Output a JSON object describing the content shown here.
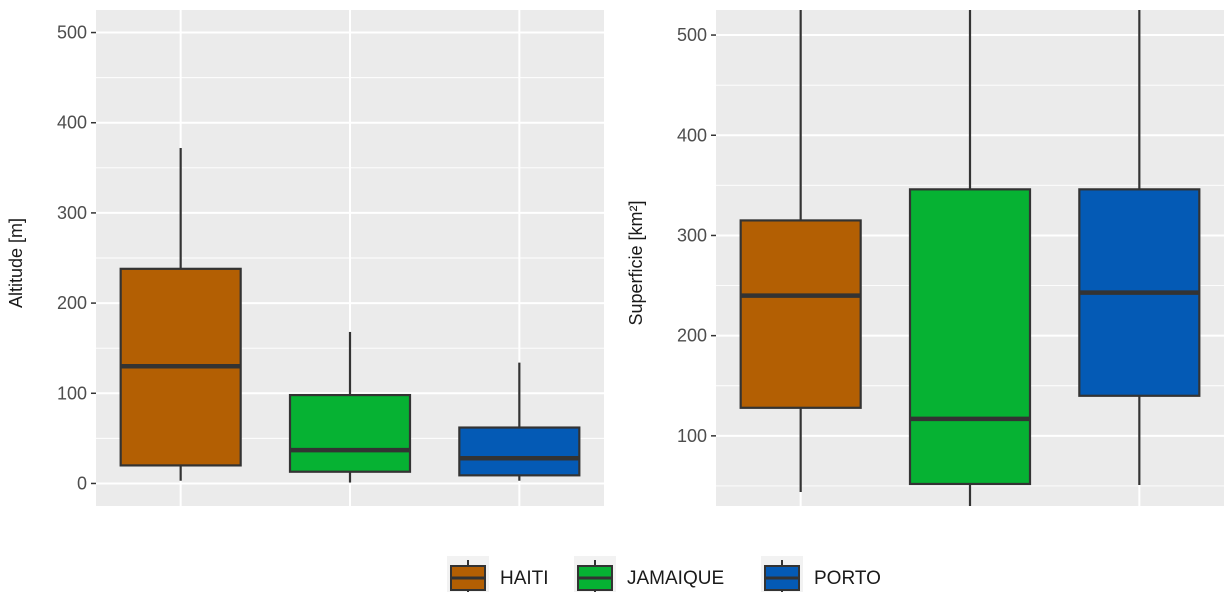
{
  "chart_data": [
    {
      "type": "boxplot",
      "ylabel": "Altitude [m]",
      "ylim": [
        -25,
        525
      ],
      "yticks": [
        0,
        100,
        200,
        300,
        400,
        500
      ],
      "grid": true,
      "series": [
        {
          "name": "HAITI",
          "whisker_low": 3,
          "q1": 20,
          "median": 130,
          "q3": 238,
          "whisker_high": 372
        },
        {
          "name": "JAMAIQUE",
          "whisker_low": 1,
          "q1": 13,
          "median": 37,
          "q3": 98,
          "whisker_high": 168
        },
        {
          "name": "PORTO",
          "whisker_low": 3,
          "q1": 9,
          "median": 28,
          "q3": 62,
          "whisker_high": 134
        }
      ]
    },
    {
      "type": "boxplot",
      "ylabel": "Superficie [km²]",
      "ylim": [
        30,
        525
      ],
      "yticks": [
        100,
        200,
        300,
        400,
        500
      ],
      "grid": true,
      "series": [
        {
          "name": "HAITI",
          "whisker_low": 44,
          "q1": 128,
          "median": 240,
          "q3": 315,
          "whisker_high": 525
        },
        {
          "name": "JAMAIQUE",
          "whisker_low": 27,
          "q1": 52,
          "median": 117,
          "q3": 346,
          "whisker_high": 525
        },
        {
          "name": "PORTO",
          "whisker_low": 51,
          "q1": 140,
          "median": 243,
          "q3": 346,
          "whisker_high": 525
        }
      ]
    }
  ],
  "legend": {
    "position": "bottom",
    "items": [
      {
        "label": "HAITI",
        "color": "#b35f03"
      },
      {
        "label": "JAMAIQUE",
        "color": "#06b233"
      },
      {
        "label": "PORTO",
        "color": "#045ab5"
      }
    ]
  },
  "colors": {
    "panel_bg": "#ebebeb",
    "grid": "#ffffff",
    "box_stroke": "#333333"
  }
}
